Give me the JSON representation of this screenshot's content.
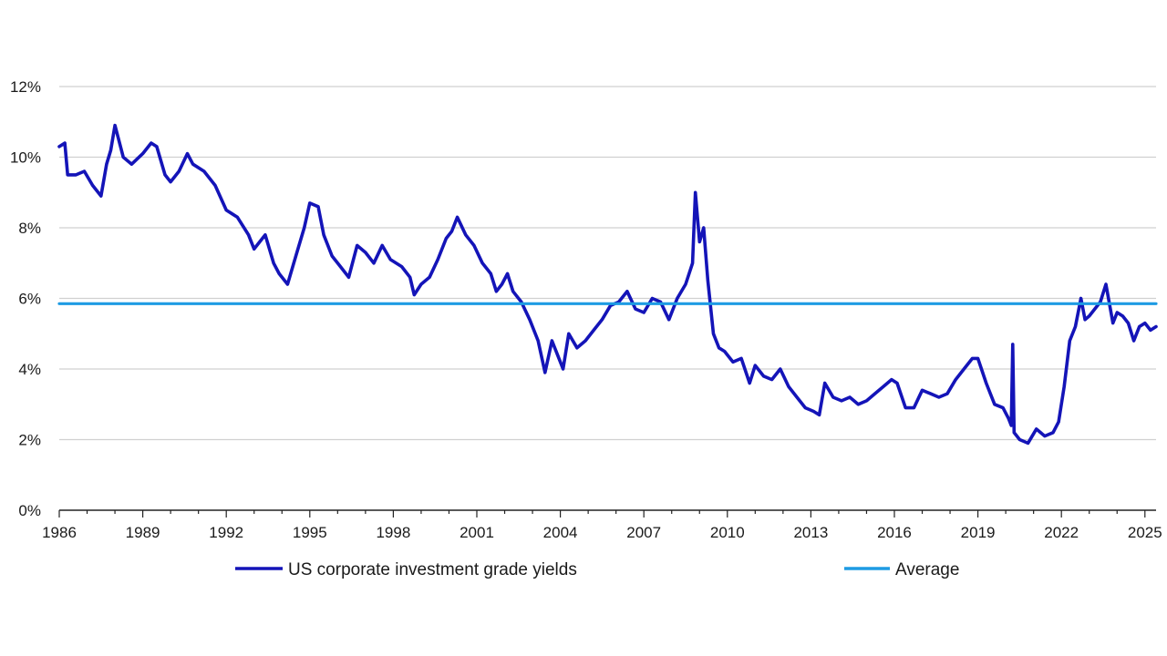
{
  "chart_data": {
    "type": "line",
    "title": "",
    "xlabel": "",
    "ylabel": "",
    "grid": true,
    "legend_position": "bottom",
    "xlim": [
      1986,
      2025.4
    ],
    "ylim": [
      0,
      12
    ],
    "x_tick_labels": [
      "1986",
      "1989",
      "1992",
      "1995",
      "1998",
      "2001",
      "2004",
      "2007",
      "2010",
      "2013",
      "2016",
      "2019",
      "2022",
      "2025"
    ],
    "x_tick_values": [
      1986,
      1989,
      1992,
      1995,
      1998,
      2001,
      2004,
      2007,
      2010,
      2013,
      2016,
      2019,
      2022,
      2025
    ],
    "y_tick_values": [
      0,
      2,
      4,
      6,
      8,
      10,
      12
    ],
    "y_tick_labels": [
      "0%",
      "2%",
      "4%",
      "6%",
      "8%",
      "10%",
      "12%"
    ],
    "series": [
      {
        "name": "US corporate investment grade yields",
        "color": "#1414b8",
        "x": [
          1986.0,
          1986.2,
          1986.3,
          1986.6,
          1986.9,
          1987.2,
          1987.5,
          1987.7,
          1987.85,
          1988.0,
          1988.3,
          1988.6,
          1989.0,
          1989.3,
          1989.5,
          1989.8,
          1990.0,
          1990.3,
          1990.6,
          1990.8,
          1991.2,
          1991.6,
          1992.0,
          1992.4,
          1992.8,
          1993.0,
          1993.4,
          1993.7,
          1993.9,
          1994.2,
          1994.5,
          1994.8,
          1995.0,
          1995.3,
          1995.5,
          1995.8,
          1996.1,
          1996.4,
          1996.7,
          1997.0,
          1997.3,
          1997.6,
          1997.9,
          1998.3,
          1998.6,
          1998.75,
          1999.0,
          1999.3,
          1999.6,
          1999.9,
          2000.1,
          2000.3,
          2000.6,
          2000.9,
          2001.2,
          2001.5,
          2001.7,
          2001.9,
          2002.1,
          2002.3,
          2002.6,
          2002.9,
          2003.2,
          2003.45,
          2003.7,
          2004.0,
          2004.1,
          2004.3,
          2004.6,
          2004.9,
          2005.2,
          2005.5,
          2005.8,
          2006.1,
          2006.4,
          2006.7,
          2007.0,
          2007.3,
          2007.6,
          2007.9,
          2008.2,
          2008.5,
          2008.75,
          2008.85,
          2009.0,
          2009.15,
          2009.3,
          2009.5,
          2009.7,
          2009.9,
          2010.2,
          2010.5,
          2010.8,
          2011.0,
          2011.3,
          2011.6,
          2011.9,
          2012.2,
          2012.5,
          2012.8,
          2013.1,
          2013.3,
          2013.5,
          2013.8,
          2014.1,
          2014.4,
          2014.7,
          2015.0,
          2015.3,
          2015.6,
          2015.9,
          2016.1,
          2016.4,
          2016.7,
          2017.0,
          2017.3,
          2017.6,
          2017.9,
          2018.2,
          2018.5,
          2018.8,
          2019.0,
          2019.3,
          2019.6,
          2019.9,
          2020.1,
          2020.2,
          2020.25,
          2020.3,
          2020.5,
          2020.8,
          2021.1,
          2021.4,
          2021.7,
          2021.9,
          2022.1,
          2022.3,
          2022.5,
          2022.7,
          2022.85,
          2023.0,
          2023.2,
          2023.4,
          2023.6,
          2023.85,
          2024.0,
          2024.2,
          2024.4,
          2024.6,
          2024.8,
          2025.0,
          2025.2,
          2025.4
        ],
        "values": [
          10.3,
          10.4,
          9.5,
          9.5,
          9.6,
          9.2,
          8.9,
          9.8,
          10.2,
          10.9,
          10.0,
          9.8,
          10.1,
          10.4,
          10.3,
          9.5,
          9.3,
          9.6,
          10.1,
          9.8,
          9.6,
          9.2,
          8.5,
          8.3,
          7.8,
          7.4,
          7.8,
          7.0,
          6.7,
          6.4,
          7.2,
          8.0,
          8.7,
          8.6,
          7.8,
          7.2,
          6.9,
          6.6,
          7.5,
          7.3,
          7.0,
          7.5,
          7.1,
          6.9,
          6.6,
          6.1,
          6.4,
          6.6,
          7.1,
          7.7,
          7.9,
          8.3,
          7.8,
          7.5,
          7.0,
          6.7,
          6.2,
          6.4,
          6.7,
          6.2,
          5.9,
          5.4,
          4.8,
          3.9,
          4.8,
          4.2,
          4.0,
          5.0,
          4.6,
          4.8,
          5.1,
          5.4,
          5.8,
          5.9,
          6.2,
          5.7,
          5.6,
          6.0,
          5.9,
          5.4,
          6.0,
          6.4,
          7.0,
          9.0,
          7.6,
          8.0,
          6.5,
          5.0,
          4.6,
          4.5,
          4.2,
          4.3,
          3.6,
          4.1,
          3.8,
          3.7,
          4.0,
          3.5,
          3.2,
          2.9,
          2.8,
          2.7,
          3.6,
          3.2,
          3.1,
          3.2,
          3.0,
          3.1,
          3.3,
          3.5,
          3.7,
          3.6,
          2.9,
          2.9,
          3.4,
          3.3,
          3.2,
          3.3,
          3.7,
          4.0,
          4.3,
          4.3,
          3.6,
          3.0,
          2.9,
          2.6,
          2.4,
          4.7,
          2.2,
          2.0,
          1.9,
          2.3,
          2.1,
          2.2,
          2.5,
          3.5,
          4.8,
          5.2,
          6.0,
          5.4,
          5.5,
          5.7,
          5.9,
          6.4,
          5.3,
          5.6,
          5.5,
          5.3,
          4.8,
          5.2,
          5.3,
          5.1,
          5.2
        ]
      },
      {
        "name": "Average",
        "color": "#1e9be3",
        "x": [
          1986.0,
          2025.4
        ],
        "values": [
          5.85,
          5.85
        ]
      }
    ]
  }
}
